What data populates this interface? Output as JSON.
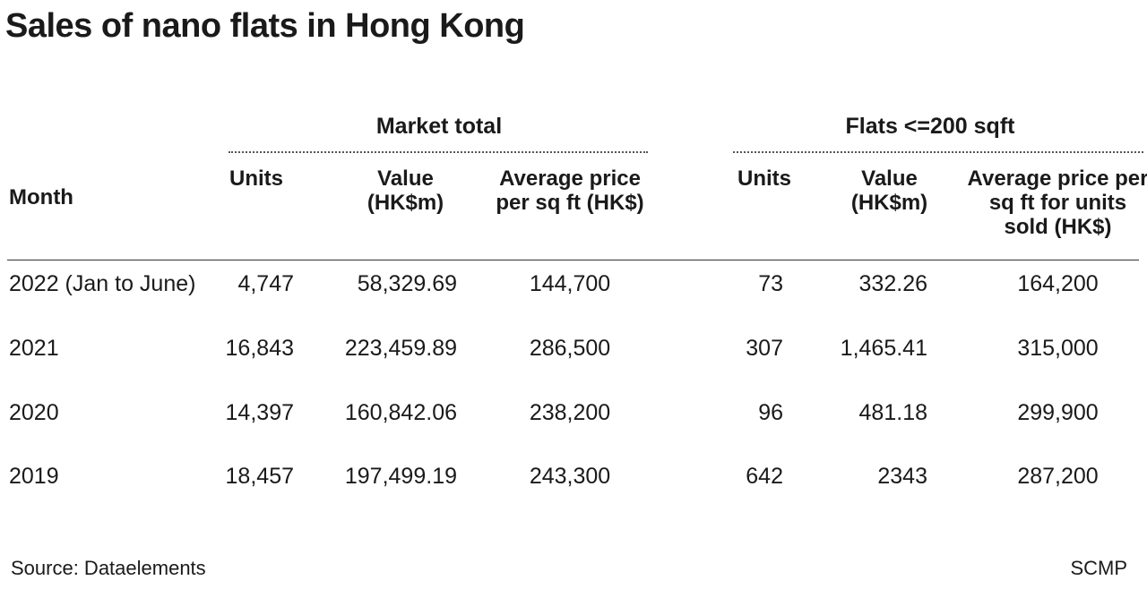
{
  "title": "Sales of nano flats in Hong Kong",
  "groups": {
    "market_total": "Market total",
    "small_flats": "Flats <=200 sqft"
  },
  "columns": {
    "month": "Month",
    "units": "Units",
    "value": "Value (HK$m)",
    "avg_price": "Average price per sq ft (HK$)",
    "small_units": "Units",
    "small_value": "Value (HK$m)",
    "small_avg_price": "Average price per sq ft for units sold (HK$)"
  },
  "chart_data": {
    "type": "table",
    "title": "Sales of nano flats in Hong Kong",
    "groups": [
      "Market total",
      "Flats <=200 sqft"
    ],
    "columns": [
      "Month",
      "Units",
      "Value (HK$m)",
      "Average price per sq ft (HK$)",
      "Units",
      "Value (HK$m)",
      "Average price per sq ft for units sold (HK$)"
    ],
    "rows": [
      [
        "2022 (Jan to June)",
        "4,747",
        "58,329.69",
        "144,700",
        "73",
        "332.26",
        "164,200"
      ],
      [
        "2021",
        "16,843",
        "223,459.89",
        "286,500",
        "307",
        "1,465.41",
        "315,000"
      ],
      [
        "2020",
        "14,397",
        "160,842.06",
        "238,200",
        "96",
        "481.18",
        "299,900"
      ],
      [
        "2019",
        "18,457",
        "197,499.19",
        "243,300",
        "642",
        "2343",
        "287,200"
      ]
    ]
  },
  "footer": {
    "source": "Source: Dataelements",
    "credit": "SCMP"
  }
}
